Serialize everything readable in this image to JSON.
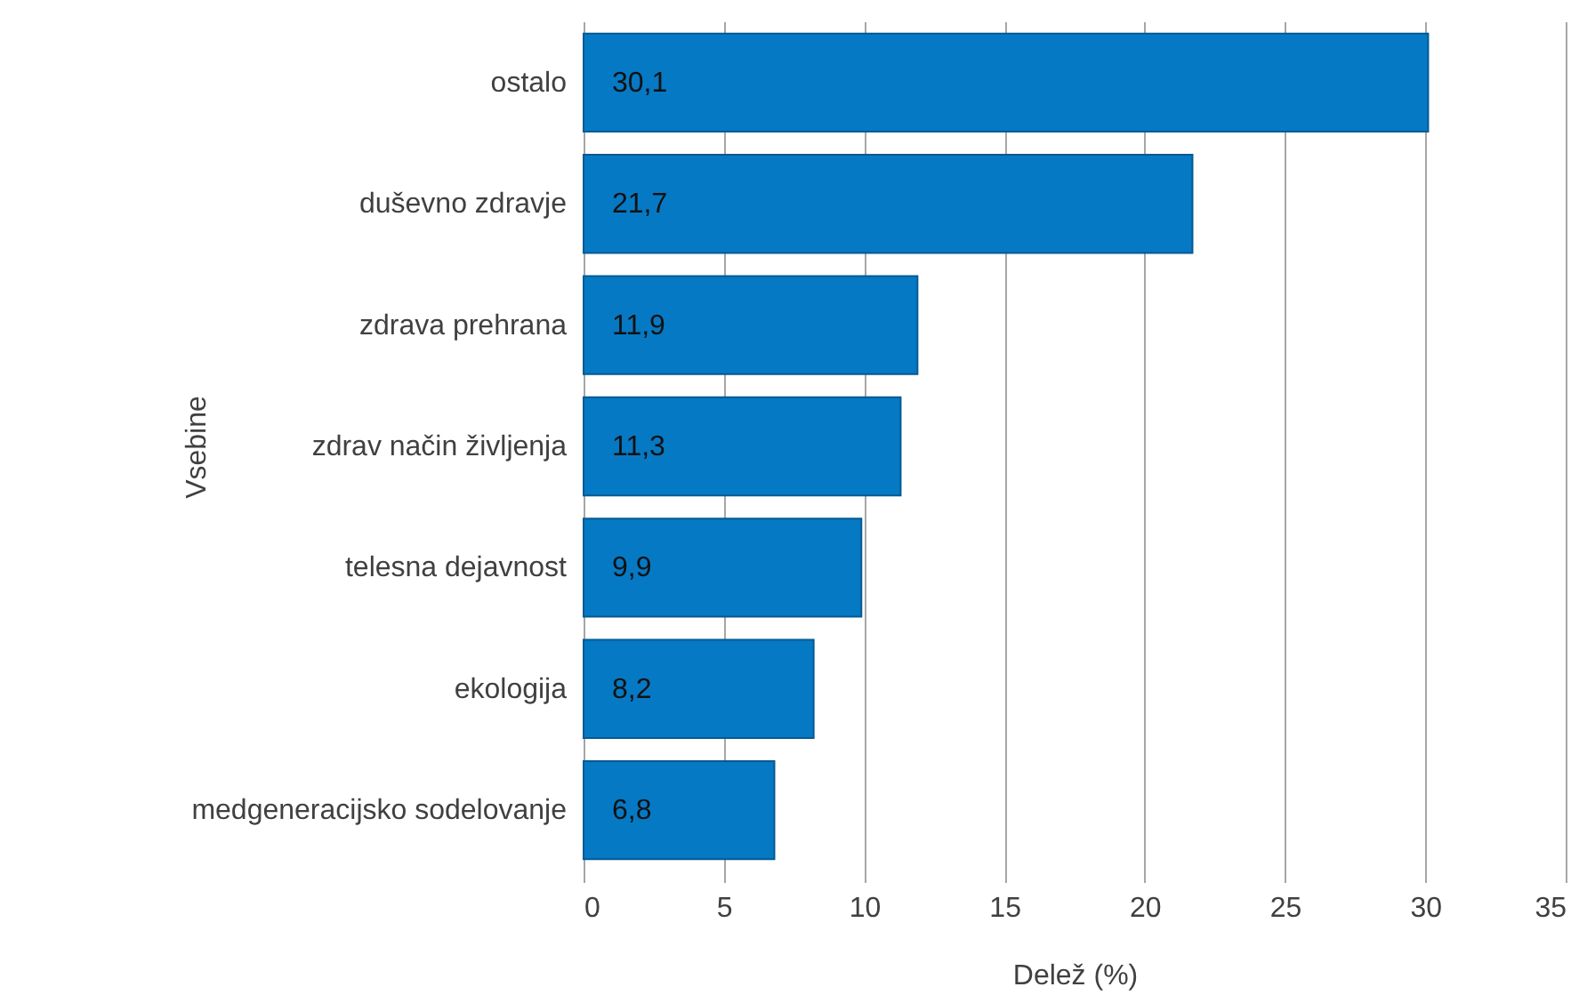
{
  "chart_data": {
    "type": "bar",
    "orientation": "horizontal",
    "xlabel": "Delež (%)",
    "ylabel": "Vsebine",
    "categories": [
      "ostalo",
      "duševno zdravje",
      "zdrava prehrana",
      "zdrav način življenja",
      "telesna dejavnost",
      "ekologija",
      "medgeneracijsko sodelovanje"
    ],
    "values": [
      30.1,
      21.7,
      11.9,
      11.3,
      9.9,
      8.2,
      6.8
    ],
    "value_labels": [
      "30,1",
      "21,7",
      "11,9",
      "11,3",
      "9,9",
      "8,2",
      "6,8"
    ],
    "color": "#0679c4",
    "xlim": [
      0,
      35
    ],
    "xticks": [
      0,
      5,
      10,
      15,
      20,
      25,
      30,
      35
    ],
    "grid": "x"
  }
}
